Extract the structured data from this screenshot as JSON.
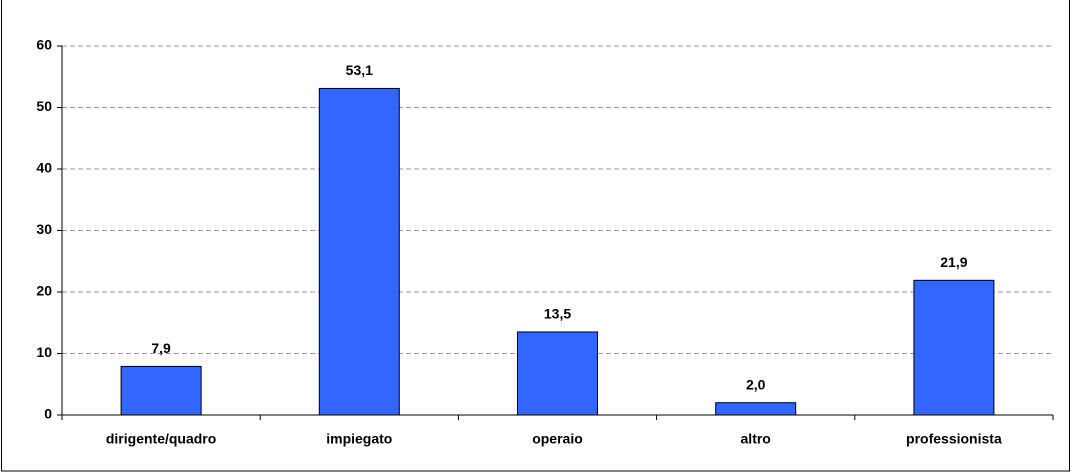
{
  "chart_data": {
    "type": "bar",
    "categories": [
      "dirigente/quadro",
      "impiegato",
      "operaio",
      "altro",
      "professionista"
    ],
    "values": [
      7.9,
      53.1,
      13.5,
      2.0,
      21.9
    ],
    "value_labels": [
      "7,9",
      "53,1",
      "13,5",
      "2,0",
      "21,9"
    ],
    "color": "#3366ff",
    "ylim": [
      0,
      60
    ],
    "yticks": [
      0,
      10,
      20,
      30,
      40,
      50,
      60
    ],
    "grid": true
  }
}
